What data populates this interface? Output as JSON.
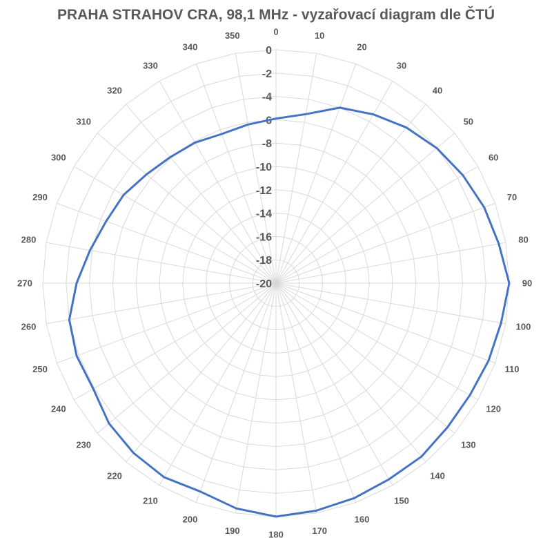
{
  "chart_data": {
    "type": "radar",
    "title": "PRAHA STRAHOV CRA, 98,1 MHz - vyzařovací diagram dle ČTÚ",
    "angles": [
      0,
      10,
      20,
      30,
      40,
      50,
      60,
      70,
      80,
      90,
      100,
      110,
      120,
      130,
      140,
      150,
      160,
      170,
      180,
      190,
      200,
      210,
      220,
      230,
      240,
      250,
      260,
      270,
      280,
      290,
      300,
      310,
      320,
      330,
      340,
      350
    ],
    "radial_axis": {
      "min": -20,
      "max": 0,
      "ticks": [
        0,
        -2,
        -4,
        -6,
        -8,
        -10,
        -12,
        -14,
        -16,
        -18,
        -20
      ],
      "tick_labels": [
        "0",
        "-2",
        "-4",
        "-6",
        "-8",
        "-10",
        "-12",
        "-14",
        "-16",
        "-18",
        "-20"
      ]
    },
    "angle_labels": [
      "0",
      "10",
      "20",
      "30",
      "40",
      "50",
      "60",
      "70",
      "80",
      "90",
      "100",
      "110",
      "120",
      "130",
      "140",
      "150",
      "160",
      "170",
      "180",
      "190",
      "200",
      "210",
      "220",
      "230",
      "240",
      "250",
      "260",
      "270",
      "280",
      "290",
      "300",
      "310",
      "320",
      "330",
      "340",
      "350"
    ],
    "series": [
      {
        "color": "#4472c4",
        "values": [
          -5.9,
          -5.3,
          -4.0,
          -3.3,
          -2.6,
          -2.0,
          -1.5,
          -1.0,
          -0.6,
          0,
          -0.4,
          -0.6,
          -0.8,
          -0.8,
          -0.6,
          -0.6,
          -0.4,
          -0.2,
          0,
          -0.4,
          -1.0,
          -0.8,
          -1.0,
          -1.3,
          -1.9,
          -1.8,
          -2.0,
          -2.9,
          -3.8,
          -4.5,
          -4.9,
          -5.5,
          -5.9,
          -6.1,
          -6.4,
          -6.2
        ]
      }
    ],
    "grid": true,
    "grid_color": "#d9d9d9"
  }
}
